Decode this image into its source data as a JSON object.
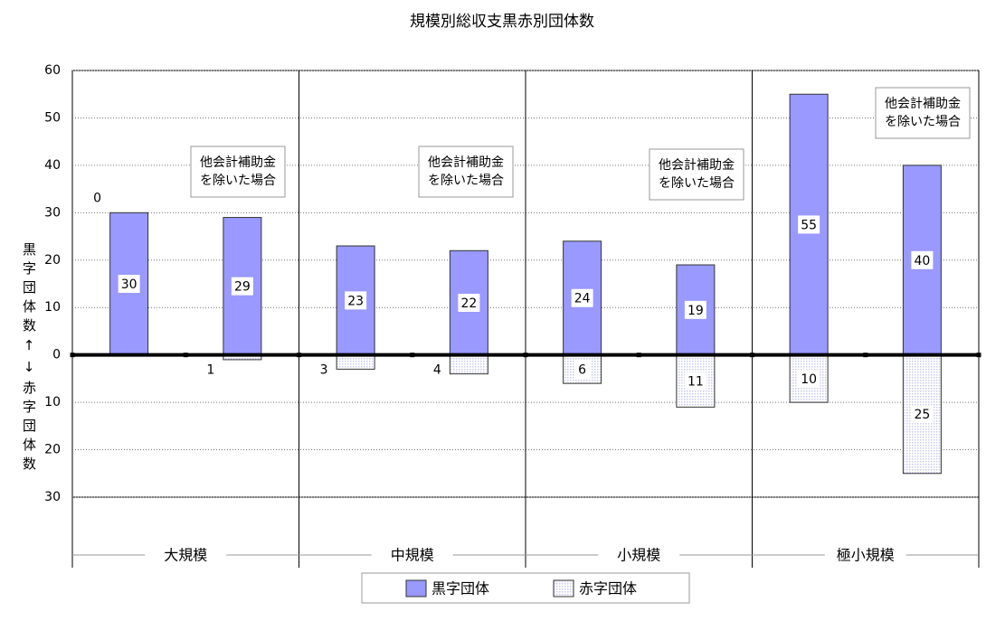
{
  "chart_data": {
    "type": "bar",
    "title": "規模別総収支黒赤別団体数",
    "y_label": "黒字団体数↑↓赤字団体数",
    "groups": [
      "大規模",
      "中規模",
      "小規模",
      "極小規模"
    ],
    "bars_per_group": 2,
    "series": [
      {
        "name": "黒字団体",
        "color": "#9999ff",
        "values": [
          30,
          29,
          23,
          22,
          24,
          19,
          55,
          40
        ]
      },
      {
        "name": "赤字団体",
        "color": "#c8c8f0",
        "pattern": "dotted",
        "values": [
          0,
          -1,
          -3,
          -4,
          -6,
          -11,
          -10,
          -25
        ],
        "value_labels": [
          "0",
          "1",
          "3",
          "4",
          "6",
          "11",
          "10",
          "25"
        ],
        "label_color": "#ff0000"
      }
    ],
    "annotations": [
      [
        "他会計補助金",
        "を除いた場合"
      ],
      [
        "他会計補助金",
        "を除いた場合"
      ],
      [
        "他会計補助金",
        "を除いた場合"
      ],
      [
        "他会計補助金",
        "を除いた場合"
      ]
    ],
    "ylim": [
      -30,
      60
    ],
    "yticks": [
      60,
      50,
      40,
      30,
      20,
      10,
      0,
      {
        "value": -10,
        "label": "10"
      },
      {
        "value": -20,
        "label": "20"
      },
      {
        "value": -30,
        "label": "30"
      }
    ],
    "negative_tick_color": "#ff0000",
    "grid": true,
    "legend": "bottom"
  }
}
